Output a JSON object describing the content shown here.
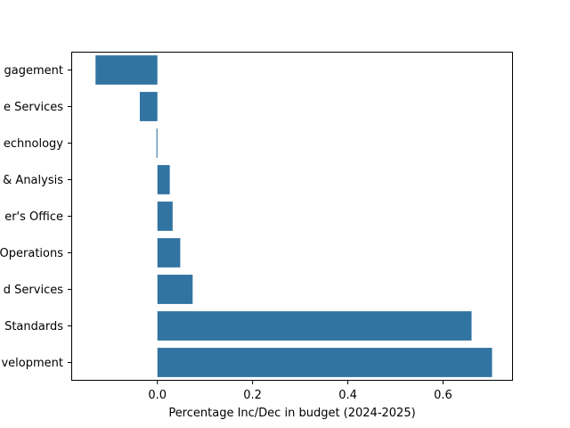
{
  "chart_data": {
    "type": "bar",
    "orientation": "horizontal",
    "title": "",
    "xlabel": "Percentage Inc/Dec in budget (2024-2025)",
    "ylabel": "",
    "categories": [
      "gagement",
      "e Services",
      "echnology",
      "& Analysis",
      "er's Office",
      "Operations",
      "d Services",
      "Standards",
      "velopment"
    ],
    "values": [
      -0.13,
      -0.037,
      -0.002,
      0.026,
      0.032,
      0.048,
      0.074,
      0.66,
      0.703
    ],
    "xlim": [
      -0.181,
      0.747
    ],
    "xticks": [
      0.0,
      0.2,
      0.4,
      0.6
    ],
    "xtick_labels": [
      "0.0",
      "0.2",
      "0.4",
      "0.6"
    ],
    "bar_color": "#3274a1",
    "grid": false
  }
}
